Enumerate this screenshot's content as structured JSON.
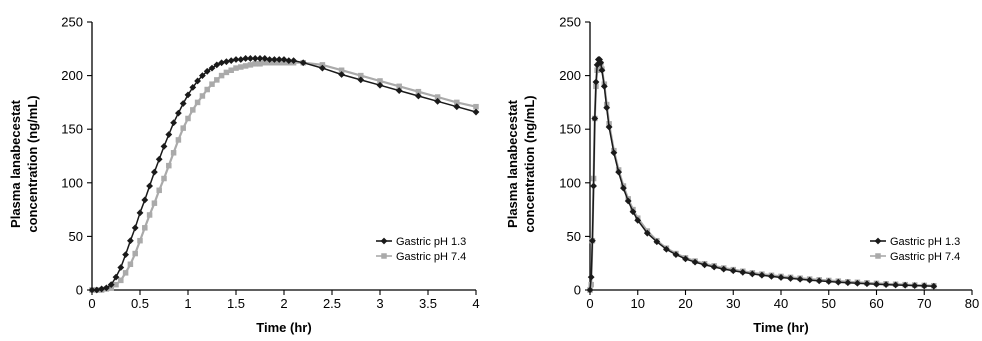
{
  "chart_data": [
    {
      "type": "line",
      "xlabel": "Time (hr)",
      "ylabel_lines": [
        "Plasma lanabecestat",
        "concentration (ng/mL)"
      ],
      "xlim": [
        0,
        4
      ],
      "ylim": [
        0,
        250
      ],
      "xticks": [
        "0",
        "0.5",
        "1",
        "1.5",
        "2",
        "2.5",
        "3",
        "3.5",
        "4"
      ],
      "yticks": [
        "0",
        "50",
        "100",
        "150",
        "200",
        "250"
      ],
      "grid": false,
      "legend_position": "right",
      "series": [
        {
          "name": "Gastric pH 1.3",
          "color": "#1a1a1a",
          "marker": "diamond",
          "x": [
            0,
            0.05,
            0.1,
            0.15,
            0.2,
            0.25,
            0.3,
            0.35,
            0.4,
            0.45,
            0.5,
            0.55,
            0.6,
            0.65,
            0.7,
            0.75,
            0.8,
            0.85,
            0.9,
            0.95,
            1.0,
            1.05,
            1.1,
            1.15,
            1.2,
            1.25,
            1.3,
            1.35,
            1.4,
            1.45,
            1.5,
            1.55,
            1.6,
            1.65,
            1.7,
            1.75,
            1.8,
            1.85,
            1.9,
            1.95,
            2.0,
            2.05,
            2.1,
            2.2,
            2.4,
            2.6,
            2.8,
            3.0,
            3.2,
            3.4,
            3.6,
            3.8,
            4.0
          ],
          "y": [
            0,
            0,
            1,
            2,
            5,
            12,
            21,
            33,
            46,
            58,
            72,
            84,
            97,
            110,
            122,
            134,
            145,
            156,
            165,
            174,
            182,
            189,
            195,
            200,
            204,
            207,
            210,
            212,
            213,
            214,
            215,
            215,
            216,
            216,
            216,
            216,
            216,
            215,
            215,
            215,
            215,
            214,
            214,
            212,
            207,
            201,
            196,
            191,
            186,
            181,
            176,
            171,
            166
          ]
        },
        {
          "name": "Gastric pH 7.4",
          "color": "#aaaaaa",
          "marker": "square",
          "x": [
            0,
            0.05,
            0.1,
            0.15,
            0.2,
            0.25,
            0.3,
            0.35,
            0.4,
            0.45,
            0.5,
            0.55,
            0.6,
            0.65,
            0.7,
            0.75,
            0.8,
            0.85,
            0.9,
            0.95,
            1.0,
            1.05,
            1.1,
            1.15,
            1.2,
            1.25,
            1.3,
            1.35,
            1.4,
            1.45,
            1.5,
            1.55,
            1.6,
            1.65,
            1.7,
            1.75,
            1.8,
            1.85,
            1.9,
            1.95,
            2.0,
            2.05,
            2.1,
            2.2,
            2.4,
            2.6,
            2.8,
            3.0,
            3.2,
            3.4,
            3.6,
            3.8,
            4.0
          ],
          "y": [
            0,
            0,
            0,
            1,
            2,
            5,
            9,
            16,
            24,
            34,
            46,
            58,
            70,
            81,
            93,
            104,
            116,
            128,
            140,
            151,
            160,
            168,
            175,
            181,
            187,
            192,
            196,
            200,
            203,
            205,
            207,
            208,
            209,
            210,
            211,
            211,
            212,
            212,
            212,
            212,
            212,
            212,
            212,
            212,
            210,
            205,
            200,
            195,
            190,
            185,
            180,
            175,
            171
          ]
        }
      ]
    },
    {
      "type": "line",
      "xlabel": "Time (hr)",
      "ylabel_lines": [
        "Plasma lanabecestat",
        "concentration (ng/mL)"
      ],
      "xlim": [
        0,
        80
      ],
      "ylim": [
        0,
        250
      ],
      "xticks": [
        "0",
        "10",
        "20",
        "30",
        "40",
        "50",
        "60",
        "70",
        "80"
      ],
      "yticks": [
        "0",
        "50",
        "100",
        "150",
        "200",
        "250"
      ],
      "grid": false,
      "legend_position": "right",
      "series": [
        {
          "name": "Gastric pH 1.3",
          "color": "#1a1a1a",
          "marker": "diamond",
          "x": [
            0,
            0.25,
            0.5,
            0.75,
            1,
            1.25,
            1.5,
            1.75,
            2,
            2.25,
            2.5,
            3,
            3.5,
            4,
            5,
            6,
            7,
            8,
            9,
            10,
            12,
            14,
            16,
            18,
            20,
            22,
            24,
            26,
            28,
            30,
            32,
            34,
            36,
            38,
            40,
            42,
            44,
            46,
            48,
            50,
            52,
            54,
            56,
            58,
            60,
            62,
            64,
            66,
            68,
            70,
            72
          ],
          "y": [
            0,
            12,
            46,
            97,
            160,
            194,
            210,
            215,
            215,
            212,
            205,
            190,
            170,
            152,
            128,
            110,
            95,
            83,
            73,
            65,
            53,
            45,
            38,
            33,
            29,
            26,
            23.5,
            21.5,
            19.5,
            18,
            16.5,
            15,
            13.8,
            12.7,
            11.7,
            10.8,
            10,
            9.2,
            8.5,
            7.9,
            7.3,
            6.8,
            6.3,
            5.8,
            5.4,
            5,
            4.7,
            4.4,
            4.1,
            3.8,
            3.5
          ]
        },
        {
          "name": "Gastric pH 7.4",
          "color": "#aaaaaa",
          "marker": "square",
          "x": [
            0,
            0.25,
            0.5,
            0.75,
            1,
            1.25,
            1.5,
            1.75,
            2,
            2.25,
            2.5,
            3,
            3.5,
            4,
            5,
            6,
            7,
            8,
            9,
            10,
            12,
            14,
            16,
            18,
            20,
            22,
            24,
            26,
            28,
            30,
            32,
            34,
            36,
            38,
            40,
            42,
            44,
            46,
            48,
            50,
            52,
            54,
            56,
            58,
            60,
            62,
            64,
            66,
            68,
            70,
            72
          ],
          "y": [
            0,
            5,
            46,
            104,
            160,
            190,
            205,
            210,
            212,
            211,
            206,
            192,
            173,
            155,
            130,
            112,
            97,
            85,
            75,
            67,
            55,
            46,
            39,
            34,
            30,
            27,
            24.5,
            22.5,
            20.5,
            19,
            17.5,
            16,
            14.8,
            13.7,
            12.7,
            11.8,
            11,
            10.2,
            9.5,
            8.9,
            8.3,
            7.7,
            7.2,
            6.7,
            6.2,
            5.8,
            5.4,
            5,
            4.6,
            4.3,
            4
          ]
        }
      ]
    }
  ]
}
